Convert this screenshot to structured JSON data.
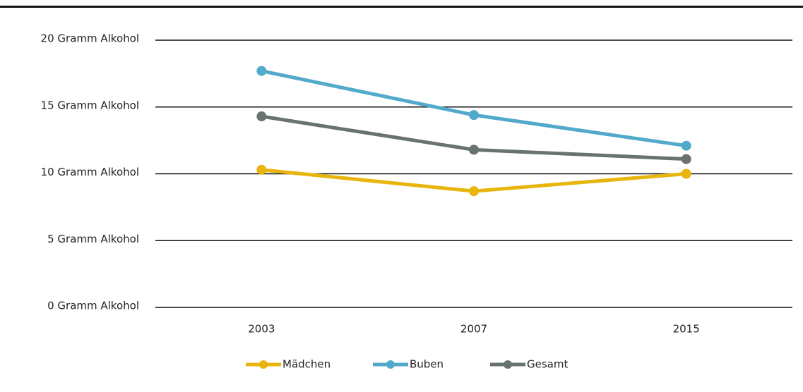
{
  "chart_data": {
    "type": "line",
    "categories": [
      "2003",
      "2007",
      "2015"
    ],
    "series": [
      {
        "name": "Mädchen",
        "color": "#e8b50c",
        "values": [
          10.3,
          8.7,
          10.0
        ]
      },
      {
        "name": "Buben",
        "color": "#52aacb",
        "values": [
          17.7,
          14.4,
          12.1
        ]
      },
      {
        "name": "Gesamt",
        "color": "#69736d",
        "values": [
          14.3,
          11.8,
          11.1
        ]
      }
    ],
    "ylim": [
      0,
      20
    ],
    "yticks": [
      {
        "value": 0,
        "label": "0 Gramm Alkohol"
      },
      {
        "value": 5,
        "label": "5 Gramm Alkohol"
      },
      {
        "value": 10,
        "label": "10 Gramm Alkohol"
      },
      {
        "value": 15,
        "label": "15 Gramm Alkohol"
      },
      {
        "value": 20,
        "label": "20 Gramm Alkohol"
      }
    ],
    "grid": true,
    "legend": "bottom"
  }
}
